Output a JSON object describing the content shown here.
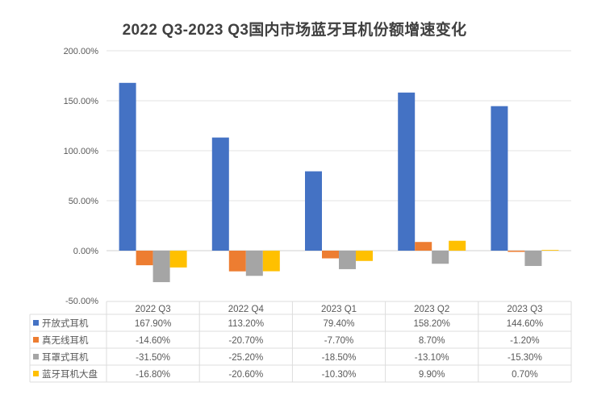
{
  "chart_data": {
    "type": "bar",
    "title": "2022 Q3-2023 Q3国内市场蓝牙耳机份额增速变化",
    "xlabel": "",
    "ylabel": "",
    "categories": [
      "2022 Q3",
      "2022 Q4",
      "2023 Q1",
      "2023 Q2",
      "2023 Q3"
    ],
    "ylim": [
      -50,
      200
    ],
    "yticks": [
      200,
      150,
      100,
      50,
      0,
      -50
    ],
    "ytick_labels": [
      "200.00%",
      "150.00%",
      "100.00%",
      "50.00%",
      "0.00%",
      "-50.00%"
    ],
    "grid": true,
    "legend": "data-table-below",
    "series": [
      {
        "name": "开放式耳机",
        "color": "#4472C4",
        "values": [
          167.9,
          113.2,
          79.4,
          158.2,
          144.6
        ],
        "labels": [
          "167.90%",
          "113.20%",
          "79.40%",
          "158.20%",
          "144.60%"
        ]
      },
      {
        "name": "真无线耳机",
        "color": "#ED7D31",
        "values": [
          -14.6,
          -20.7,
          -7.7,
          8.7,
          -1.2
        ],
        "labels": [
          "-14.60%",
          "-20.70%",
          "-7.70%",
          "8.70%",
          "-1.20%"
        ]
      },
      {
        "name": "耳罩式耳机",
        "color": "#A5A5A5",
        "values": [
          -31.5,
          -25.2,
          -18.5,
          -13.1,
          -15.3
        ],
        "labels": [
          "-31.50%",
          "-25.20%",
          "-18.50%",
          "-13.10%",
          "-15.30%"
        ]
      },
      {
        "name": "蓝牙耳机大盘",
        "color": "#FFC000",
        "values": [
          -16.8,
          -20.6,
          -10.3,
          9.9,
          0.7
        ],
        "labels": [
          "-16.80%",
          "-20.60%",
          "-10.30%",
          "9.90%",
          "0.70%"
        ]
      }
    ]
  }
}
